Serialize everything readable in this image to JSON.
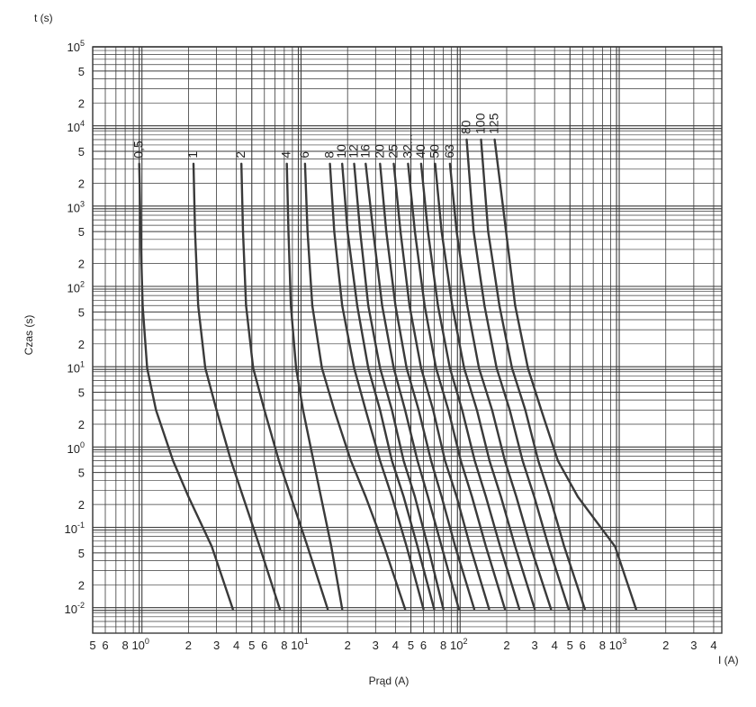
{
  "chart_data": {
    "type": "line",
    "title": "",
    "xlabel": "Prąd (A)",
    "ylabel": "Czas (s)",
    "y_axis_unit_label": "t (s)",
    "x_axis_unit_label": "I (A)",
    "x_scale": "log",
    "y_scale": "log",
    "xlim": [
      0.5,
      4500
    ],
    "ylim": [
      0.005,
      100000
    ],
    "grid": true,
    "legend": "none",
    "curve_color": "#3a3a3a",
    "grid_color": "#3a3a3a",
    "x_tick_labels": [
      {
        "v": 0.5,
        "t": "5"
      },
      {
        "v": 0.6,
        "t": "6"
      },
      {
        "v": 0.8,
        "t": "8"
      },
      {
        "v": 1,
        "t": "10",
        "sup": "0"
      },
      {
        "v": 2,
        "t": "2"
      },
      {
        "v": 3,
        "t": "3"
      },
      {
        "v": 4,
        "t": "4"
      },
      {
        "v": 5,
        "t": "5"
      },
      {
        "v": 6,
        "t": "6"
      },
      {
        "v": 8,
        "t": "8"
      },
      {
        "v": 10,
        "t": "10",
        "sup": "1"
      },
      {
        "v": 20,
        "t": "2"
      },
      {
        "v": 30,
        "t": "3"
      },
      {
        "v": 40,
        "t": "4"
      },
      {
        "v": 50,
        "t": "5"
      },
      {
        "v": 60,
        "t": "6"
      },
      {
        "v": 80,
        "t": "8"
      },
      {
        "v": 100,
        "t": "10",
        "sup": "2"
      },
      {
        "v": 200,
        "t": "2"
      },
      {
        "v": 300,
        "t": "3"
      },
      {
        "v": 400,
        "t": "4"
      },
      {
        "v": 500,
        "t": "5"
      },
      {
        "v": 600,
        "t": "6"
      },
      {
        "v": 800,
        "t": "8"
      },
      {
        "v": 1000,
        "t": "10",
        "sup": "3"
      },
      {
        "v": 2000,
        "t": "2"
      },
      {
        "v": 3000,
        "t": "3"
      },
      {
        "v": 4000,
        "t": "4"
      }
    ],
    "y_tick_labels": [
      {
        "v": 100000,
        "t": "10",
        "sup": "5"
      },
      {
        "v": 50000,
        "t": "5"
      },
      {
        "v": 20000,
        "t": "2"
      },
      {
        "v": 10000,
        "t": "10",
        "sup": "4"
      },
      {
        "v": 5000,
        "t": "5"
      },
      {
        "v": 2000,
        "t": "2"
      },
      {
        "v": 1000,
        "t": "10",
        "sup": "3"
      },
      {
        "v": 500,
        "t": "5"
      },
      {
        "v": 200,
        "t": "2"
      },
      {
        "v": 100,
        "t": "10",
        "sup": "2"
      },
      {
        "v": 50,
        "t": "5"
      },
      {
        "v": 20,
        "t": "2"
      },
      {
        "v": 10,
        "t": "10",
        "sup": "1"
      },
      {
        "v": 5,
        "t": "5"
      },
      {
        "v": 2,
        "t": "2"
      },
      {
        "v": 1,
        "t": "10",
        "sup": "0"
      },
      {
        "v": 0.5,
        "t": "5"
      },
      {
        "v": 0.2,
        "t": "2"
      },
      {
        "v": 0.1,
        "t": "10",
        "sup": "-1"
      },
      {
        "v": 0.05,
        "t": "5"
      },
      {
        "v": 0.02,
        "t": "2"
      },
      {
        "v": 0.01,
        "t": "10",
        "sup": "-2"
      }
    ],
    "series": [
      {
        "name": "0,5",
        "x": [
          0.98,
          1.0,
          1.03,
          1.1,
          1.25,
          1.6,
          2.0,
          2.8,
          3.8
        ],
        "y": [
          3500,
          500,
          60,
          10,
          3,
          0.7,
          0.25,
          0.06,
          0.01
        ]
      },
      {
        "name": "1",
        "x": [
          2.15,
          2.2,
          2.3,
          2.55,
          3.0,
          3.7,
          4.4,
          5.6,
          7.5
        ],
        "y": [
          3500,
          500,
          60,
          10,
          3,
          0.7,
          0.25,
          0.06,
          0.01
        ]
      },
      {
        "name": "2",
        "x": [
          4.3,
          4.4,
          4.6,
          5.1,
          6.0,
          7.4,
          8.8,
          11.2,
          15
        ],
        "y": [
          3500,
          500,
          60,
          10,
          3,
          0.7,
          0.25,
          0.06,
          0.01
        ]
      },
      {
        "name": "4",
        "x": [
          8.3,
          8.5,
          8.8,
          9.5,
          10.5,
          12.2,
          13.6,
          15.8,
          18.5
        ],
        "y": [
          3500,
          500,
          60,
          10,
          3,
          0.7,
          0.25,
          0.06,
          0.01
        ]
      },
      {
        "name": "6",
        "x": [
          10.8,
          11.2,
          12.0,
          13.8,
          16.5,
          21,
          26,
          34,
          46
        ],
        "y": [
          3500,
          500,
          60,
          10,
          3,
          0.7,
          0.25,
          0.06,
          0.01
        ]
      },
      {
        "name": "8",
        "x": [
          15.5,
          16.5,
          18.5,
          22,
          26,
          32,
          38,
          47,
          60
        ],
        "y": [
          3500,
          500,
          60,
          10,
          3,
          0.7,
          0.25,
          0.06,
          0.01
        ]
      },
      {
        "name": "10",
        "x": [
          18.5,
          20,
          23,
          27,
          32,
          38,
          45,
          55,
          70
        ],
        "y": [
          3500,
          500,
          60,
          10,
          3,
          0.7,
          0.25,
          0.06,
          0.01
        ]
      },
      {
        "name": "12",
        "x": [
          22,
          24,
          27,
          32,
          38,
          45,
          53,
          64,
          80
        ],
        "y": [
          3500,
          500,
          60,
          10,
          3,
          0.7,
          0.25,
          0.06,
          0.01
        ]
      },
      {
        "name": "16",
        "x": [
          26,
          29,
          33,
          39,
          46,
          55,
          64,
          78,
          100
        ],
        "y": [
          3500,
          500,
          60,
          10,
          3,
          0.7,
          0.25,
          0.06,
          0.01
        ]
      },
      {
        "name": "20",
        "x": [
          32,
          35,
          40,
          47,
          56,
          67,
          78,
          95,
          125
        ],
        "y": [
          3500,
          500,
          60,
          10,
          3,
          0.7,
          0.25,
          0.06,
          0.01
        ]
      },
      {
        "name": "25",
        "x": [
          39,
          43,
          49,
          58,
          69,
          82,
          97,
          118,
          155
        ],
        "y": [
          3500,
          500,
          60,
          10,
          3,
          0.7,
          0.25,
          0.06,
          0.01
        ]
      },
      {
        "name": "32...",
        "x": [
          48,
          53,
          61,
          72,
          86,
          103,
          121,
          148,
          195
        ],
        "y": [
          3500,
          500,
          60,
          10,
          3,
          0.7,
          0.25,
          0.06,
          0.01
        ]
      },
      {
        "name": "40",
        "x": [
          58,
          64,
          74,
          88,
          105,
          126,
          148,
          182,
          240
        ],
        "y": [
          3500,
          500,
          60,
          10,
          3,
          0.7,
          0.25,
          0.06,
          0.01
        ]
      },
      {
        "name": "50",
        "x": [
          71,
          78,
          91,
          108,
          130,
          156,
          184,
          226,
          300
        ],
        "y": [
          3500,
          500,
          60,
          10,
          3,
          0.7,
          0.25,
          0.06,
          0.01
        ]
      },
      {
        "name": "63",
        "x": [
          88,
          97,
          113,
          134,
          162,
          195,
          230,
          283,
          380
        ],
        "y": [
          3500,
          500,
          60,
          10,
          3,
          0.7,
          0.25,
          0.06,
          0.01
        ]
      },
      {
        "name": "80",
        "x": [
          112,
          124,
          145,
          173,
          209,
          252,
          298,
          367,
          490
        ],
        "y": [
          7000,
          500,
          60,
          10,
          3,
          0.7,
          0.25,
          0.06,
          0.01
        ]
      },
      {
        "name": "100",
        "x": [
          138,
          153,
          180,
          216,
          262,
          316,
          374,
          460,
          620
        ],
        "y": [
          7000,
          500,
          60,
          10,
          3,
          0.7,
          0.25,
          0.06,
          0.01
        ]
      },
      {
        "name": "125",
        "x": [
          168,
          190,
          226,
          272,
          330,
          420,
          560,
          960,
          1300
        ],
        "y": [
          7000,
          1000,
          60,
          10,
          3,
          0.7,
          0.25,
          0.06,
          0.01
        ]
      }
    ]
  }
}
